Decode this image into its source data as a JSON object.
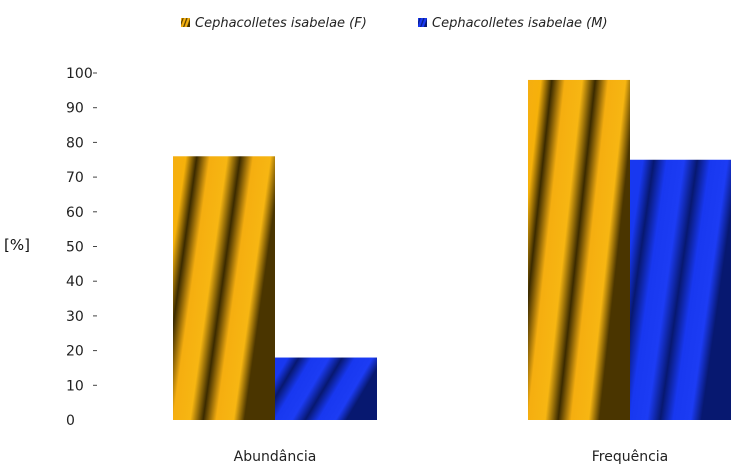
{
  "chart_data": {
    "type": "bar",
    "title": "",
    "xlabel": "",
    "ylabel": "[%]",
    "categories": [
      "Abundância",
      "Frequência"
    ],
    "series": [
      {
        "name": "Cephacolletes isabelae (F)",
        "values": [
          76,
          98
        ],
        "color": "#F2A300"
      },
      {
        "name": "Cephacolletes isabelae (M)",
        "values": [
          18,
          75
        ],
        "color": "#1430D8"
      }
    ],
    "ylim": [
      0,
      100
    ],
    "yticks": [
      0,
      10,
      20,
      30,
      40,
      50,
      60,
      70,
      80,
      90,
      100
    ],
    "grid": false,
    "legend_position": "top"
  }
}
